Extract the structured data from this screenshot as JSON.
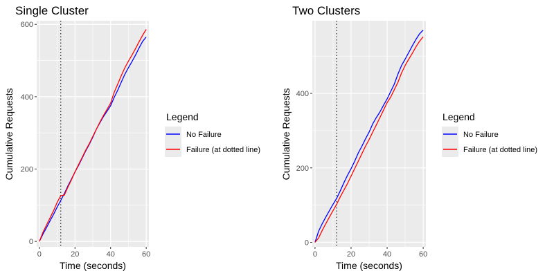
{
  "chart_data": [
    {
      "type": "line",
      "title": "Single Cluster",
      "xlabel": "Time (seconds)",
      "ylabel": "Cumulative Requests",
      "xlim": [
        -1.5,
        61.5
      ],
      "ylim": [
        -15,
        610
      ],
      "x_ticks": [
        0,
        20,
        40,
        60
      ],
      "y_ticks": [
        0,
        200,
        400,
        600
      ],
      "grid": true,
      "vline": {
        "x": 12,
        "style": "dotted",
        "color": "#333333"
      },
      "legend": {
        "title": "Legend",
        "placement": "right",
        "entries": [
          "No Failure",
          "Failure (at dotted line)"
        ]
      },
      "series": [
        {
          "name": "No Failure",
          "color": "#0000ff",
          "x": [
            0,
            2,
            4,
            6,
            8,
            10,
            12,
            14,
            16,
            18,
            20,
            22,
            24,
            26,
            28,
            30,
            32,
            34,
            36,
            38,
            40,
            42,
            44,
            46,
            48,
            50,
            52,
            54,
            56,
            58,
            60
          ],
          "y": [
            0,
            20,
            38,
            57,
            75,
            95,
            113,
            132,
            153,
            172,
            192,
            210,
            230,
            250,
            268,
            288,
            310,
            328,
            345,
            360,
            375,
            398,
            418,
            440,
            462,
            480,
            497,
            515,
            535,
            553,
            565
          ]
        },
        {
          "name": "Failure (at dotted line)",
          "color": "#ff0000",
          "x": [
            0,
            2,
            4,
            6,
            8,
            10,
            12,
            14,
            16,
            18,
            20,
            22,
            24,
            26,
            28,
            30,
            32,
            34,
            36,
            38,
            40,
            42,
            44,
            46,
            48,
            50,
            52,
            54,
            56,
            58,
            60
          ],
          "y": [
            0,
            25,
            45,
            65,
            85,
            108,
            126,
            128,
            150,
            170,
            192,
            212,
            232,
            252,
            270,
            290,
            310,
            330,
            348,
            365,
            382,
            412,
            435,
            458,
            480,
            498,
            515,
            533,
            552,
            570,
            586
          ]
        }
      ]
    },
    {
      "type": "line",
      "title": "Two Clusters",
      "xlabel": "Time (seconds)",
      "ylabel": "Cumulative Requests",
      "xlim": [
        -1.5,
        61.5
      ],
      "ylim": [
        -12,
        595
      ],
      "x_ticks": [
        0,
        20,
        40,
        60
      ],
      "y_ticks": [
        0,
        200,
        400
      ],
      "grid": true,
      "vline": {
        "x": 12,
        "style": "dotted",
        "color": "#333333"
      },
      "legend": {
        "title": "Legend",
        "placement": "right",
        "entries": [
          "No Failure",
          "Failure (at dotted line)"
        ]
      },
      "series": [
        {
          "name": "No Failure",
          "color": "#0000ff",
          "x": [
            0,
            2,
            4,
            6,
            8,
            10,
            12,
            14,
            16,
            18,
            20,
            22,
            24,
            26,
            28,
            30,
            32,
            34,
            36,
            38,
            40,
            42,
            44,
            46,
            48,
            50,
            52,
            54,
            56,
            58,
            60
          ],
          "y": [
            0,
            30,
            50,
            68,
            85,
            102,
            118,
            138,
            160,
            180,
            198,
            218,
            240,
            258,
            278,
            296,
            318,
            335,
            350,
            368,
            385,
            405,
            425,
            452,
            475,
            492,
            510,
            528,
            545,
            560,
            570
          ]
        },
        {
          "name": "Failure (at dotted line)",
          "color": "#ff0000",
          "x": [
            0,
            2,
            4,
            6,
            8,
            10,
            12,
            14,
            16,
            18,
            20,
            22,
            24,
            26,
            28,
            30,
            32,
            34,
            36,
            38,
            40,
            42,
            44,
            46,
            48,
            50,
            52,
            54,
            56,
            58,
            60
          ],
          "y": [
            0,
            12,
            32,
            50,
            68,
            85,
            102,
            122,
            140,
            158,
            178,
            198,
            218,
            238,
            258,
            276,
            296,
            315,
            335,
            355,
            375,
            390,
            410,
            430,
            455,
            475,
            492,
            508,
            525,
            540,
            552
          ]
        }
      ]
    }
  ]
}
